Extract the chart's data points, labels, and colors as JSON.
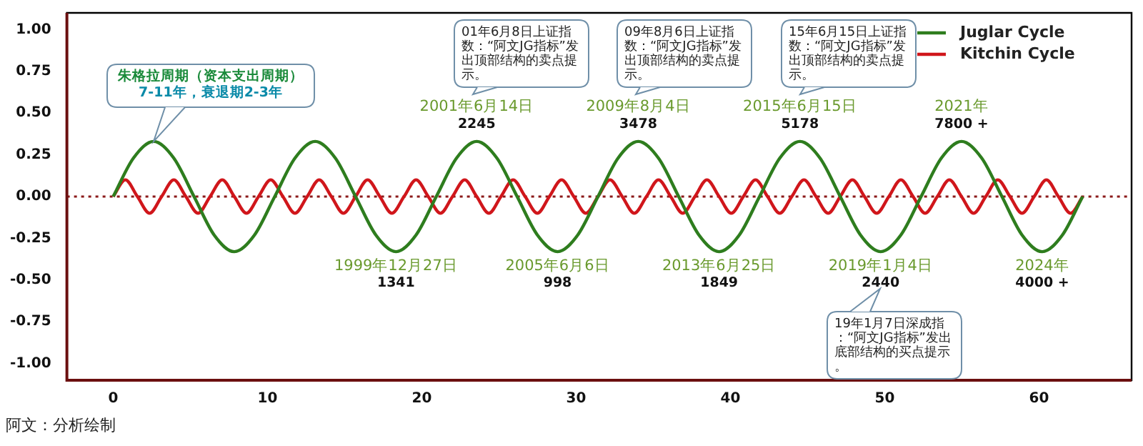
{
  "chart_data": {
    "type": "line",
    "series": [
      {
        "name": "Juglar Cycle",
        "color": "#2e7d1e",
        "x": [
          0,
          1.31,
          2.62,
          3.93,
          5.24,
          6.54,
          7.85,
          9.16,
          10.47,
          11.78,
          13.09,
          14.4,
          15.71,
          17.02,
          18.33,
          19.63,
          20.94,
          22.25,
          23.56,
          24.87,
          26.18,
          27.49,
          28.8,
          30.11,
          31.42,
          32.72,
          34.03,
          35.34,
          36.65,
          37.96,
          39.27,
          40.58,
          41.89,
          43.2,
          44.51,
          45.81,
          47.12,
          48.43,
          49.74,
          51.05,
          52.36,
          53.67,
          54.98,
          56.29,
          57.6,
          58.9,
          60.21,
          61.52,
          62.83
        ],
        "values": [
          0,
          0.23,
          0.33,
          0.23,
          0,
          -0.23,
          -0.33,
          -0.23,
          0,
          0.23,
          0.33,
          0.23,
          0,
          -0.23,
          -0.33,
          -0.23,
          0,
          0.23,
          0.33,
          0.23,
          0,
          -0.23,
          -0.33,
          -0.23,
          0,
          0.23,
          0.33,
          0.23,
          0,
          -0.23,
          -0.33,
          -0.23,
          0,
          0.23,
          0.33,
          0.23,
          0,
          -0.23,
          -0.33,
          -0.23,
          0,
          0.23,
          0.33,
          0.23,
          0,
          -0.23,
          -0.33,
          -0.23,
          0
        ]
      },
      {
        "name": "Kitchin Cycle",
        "color": "#d0161b",
        "x": [
          0,
          0.79,
          1.57,
          2.36,
          3.14,
          3.93,
          4.71,
          5.5,
          6.28,
          7.07,
          7.85,
          8.64,
          9.42,
          10.21,
          11,
          11.78,
          12.57,
          13.35,
          14.14,
          14.92,
          15.71,
          16.49,
          17.28,
          18.06,
          18.85,
          19.63,
          20.42,
          21.21,
          21.99,
          22.78,
          23.56,
          24.35,
          25.13,
          25.92,
          26.7,
          27.49,
          28.27,
          29.06,
          29.85,
          30.63,
          31.42,
          32.2,
          32.99,
          33.77,
          34.56,
          35.34,
          36.13,
          36.91,
          37.7,
          38.48,
          39.27,
          40.06,
          40.84,
          41.63,
          42.41,
          43.2,
          43.98,
          44.77,
          45.55,
          46.34,
          47.12,
          47.91,
          48.69,
          49.48,
          50.27,
          51.05,
          51.84,
          52.62,
          53.41,
          54.19,
          54.98,
          55.76,
          56.55,
          57.33,
          58.12,
          58.9,
          59.69,
          60.48,
          61.26,
          62.05,
          62.83
        ],
        "values": [
          0,
          0.1,
          0,
          -0.1,
          0,
          0.1,
          0,
          -0.1,
          0,
          0.1,
          0,
          -0.1,
          0,
          0.1,
          0,
          -0.1,
          0,
          0.1,
          0,
          -0.1,
          0,
          0.1,
          0,
          -0.1,
          0,
          0.1,
          0,
          -0.1,
          0,
          0.1,
          0,
          -0.1,
          0,
          0.1,
          0,
          -0.1,
          0,
          0.1,
          0,
          -0.1,
          0,
          0.1,
          0,
          -0.1,
          0,
          0.1,
          0,
          -0.1,
          0,
          0.1,
          0,
          -0.1,
          0,
          0.1,
          0,
          -0.1,
          0,
          0.1,
          0,
          -0.1,
          0,
          0.1,
          0,
          -0.1,
          0,
          0.1,
          0,
          -0.1,
          0,
          0.1,
          0,
          -0.1,
          0,
          0.1,
          0,
          -0.1,
          0,
          0.1,
          0,
          -0.1,
          0
        ]
      }
    ],
    "xlim": [
      -3,
      66
    ],
    "xticks": [
      0,
      10,
      20,
      30,
      40,
      50,
      60
    ],
    "ylim": [
      -1.1,
      1.1
    ],
    "yticks": [
      {
        "value": -1,
        "label": "-1.00"
      },
      {
        "value": -0.75,
        "label": "-0.75"
      },
      {
        "value": -0.5,
        "label": "-0.50"
      },
      {
        "value": -0.25,
        "label": "-0.25"
      },
      {
        "value": 0,
        "label": "0.00"
      },
      {
        "value": 0.25,
        "label": "0.25"
      },
      {
        "value": 0.5,
        "label": "0.50"
      },
      {
        "value": 0.75,
        "label": "0.75"
      },
      {
        "value": 1,
        "label": "1.00"
      }
    ],
    "ref_lines": [
      {
        "axis": "y",
        "value": 0,
        "color": "#8b1a1a",
        "line_style": "dotted"
      }
    ],
    "grid": false,
    "legend": "top right",
    "marker": "none",
    "line_style": "solid",
    "annotations": [
      {
        "text": "朱格拉周期（资本支出周期）7-11年，衰退期2-3年",
        "x": 2.62,
        "y": 0.33
      },
      {
        "text": "1999年12月27日\n1341",
        "x": 18.33,
        "y": -0.33
      },
      {
        "text": "2001年6月14日\n2245",
        "x": 23.56,
        "y": 0.33
      },
      "01年6月8日上证指数：“阿文JG指标”发出顶部结构的卖点提示。",
      {
        "text": "2005年6月6日\n998",
        "x": 28.8,
        "y": -0.33
      },
      {
        "text": "2009年8月4日\n3478",
        "x": 34.03,
        "y": 0.33
      },
      "09年8月6日上证指数：“阿文JG指标”发出顶部结构的卖点提示。",
      {
        "text": "2013年6月25日\n1849",
        "x": 39.27,
        "y": -0.33
      },
      {
        "text": "2015年6月15日\n5178",
        "x": 44.51,
        "y": 0.33
      },
      "15年6月15日上证指数：“阿文JG指标”发出顶部结构的卖点提示。",
      {
        "text": "2019年1月4日\n2440",
        "x": 49.74,
        "y": -0.33
      },
      "19年1月7日深成指：“阿文JG指标”发出底部结构的买点提示。",
      {
        "text": "2021年\n7800 +",
        "x": 54.98,
        "y": 0.33
      },
      {
        "text": "2024年\n4000 +",
        "x": 60.21,
        "y": -0.33
      },
      "阿文：分析绘制"
    ]
  }
}
